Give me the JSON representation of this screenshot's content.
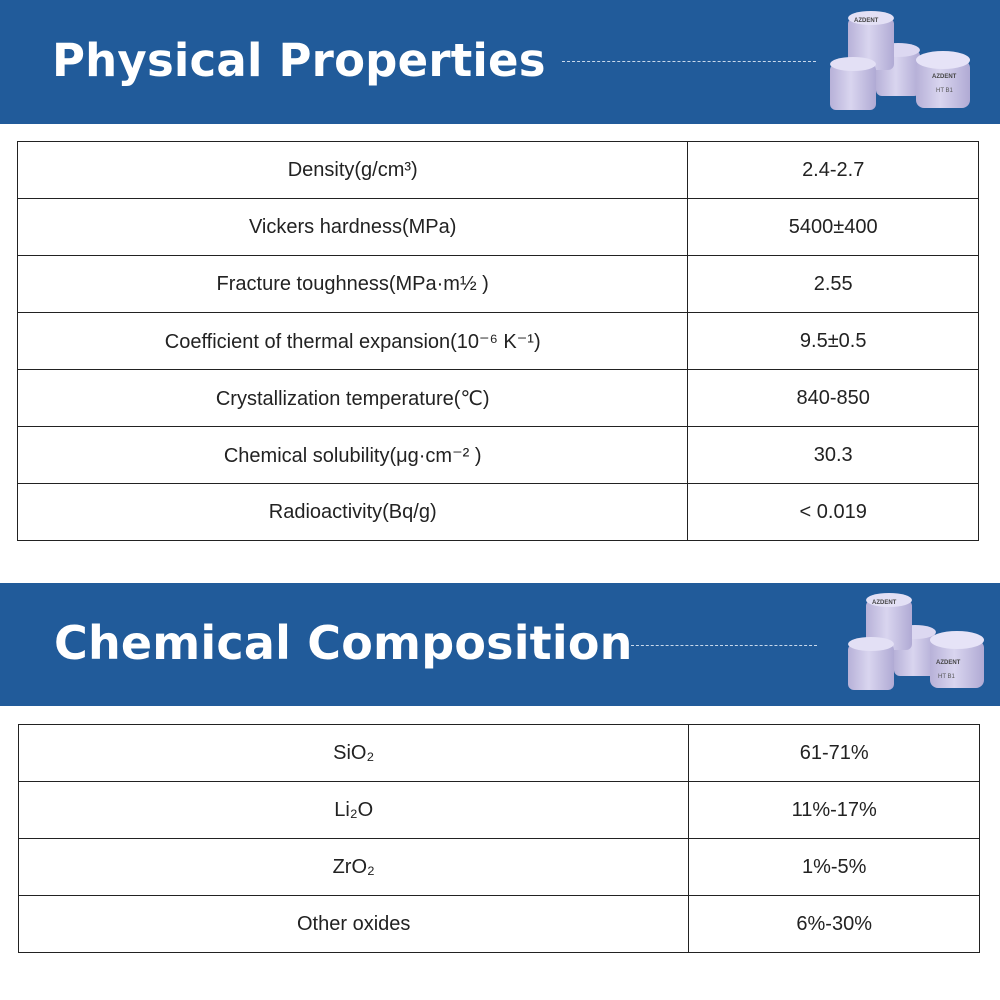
{
  "physical": {
    "title": "Physical Properties",
    "puck_label_brand": "AZDENT",
    "puck_label_shade": "HT B1",
    "rows": [
      {
        "name": "Density(g/cm³)",
        "value": "2.4-2.7"
      },
      {
        "name": "Vickers hardness(MPa)",
        "value": "5400±400"
      },
      {
        "name": "Fracture toughness(MPa·m½ )",
        "value": "2.55"
      },
      {
        "name": "Coefficient of thermal expansion(10⁻⁶ K⁻¹)",
        "value": "9.5±0.5"
      },
      {
        "name": "Crystallization temperature(℃)",
        "value": "840-850"
      },
      {
        "name": "Chemical solubility(μg·cm⁻² )",
        "value": "30.3"
      },
      {
        "name": "Radioactivity(Bq/g)",
        "value": "< 0.019"
      }
    ]
  },
  "chemical": {
    "title": "Chemical Composition",
    "rows": [
      {
        "name": "SiO₂",
        "value": "61-71%"
      },
      {
        "name": "Li₂O",
        "value": "11%-17%"
      },
      {
        "name": "ZrO₂",
        "value": "1%-5%"
      },
      {
        "name": "Other oxides",
        "value": "6%-30%"
      }
    ]
  },
  "colors": {
    "banner": "#215b9a",
    "puck": "#c8c3e4",
    "border": "#222222"
  }
}
